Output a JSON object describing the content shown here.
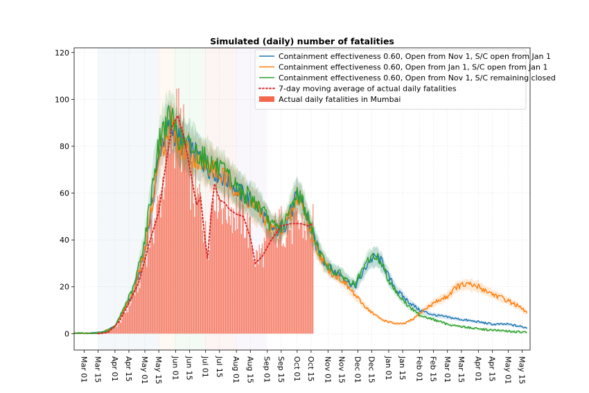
{
  "chart_data": {
    "type": "line",
    "title": "Simulated (daily) number of fatalities",
    "xlabel": "",
    "ylabel": "",
    "x_start_date": "2020-02-20",
    "x_end_date": "2021-05-23",
    "ylim": [
      -7,
      122
    ],
    "y_ticks": [
      0,
      20,
      40,
      60,
      80,
      100,
      120
    ],
    "x_ticks": [
      {
        "date": "2020-03-01",
        "label": "Mar 01"
      },
      {
        "date": "2020-03-15",
        "label": "Mar 15"
      },
      {
        "date": "2020-04-01",
        "label": "Apr 01"
      },
      {
        "date": "2020-04-15",
        "label": "Apr 15"
      },
      {
        "date": "2020-05-01",
        "label": "May 01"
      },
      {
        "date": "2020-05-15",
        "label": "May 15"
      },
      {
        "date": "2020-06-01",
        "label": "Jun 01"
      },
      {
        "date": "2020-06-15",
        "label": "Jun 15"
      },
      {
        "date": "2020-07-01",
        "label": "Jul 01"
      },
      {
        "date": "2020-07-15",
        "label": "Jul 15"
      },
      {
        "date": "2020-08-01",
        "label": "Aug 01"
      },
      {
        "date": "2020-08-15",
        "label": "Aug 15"
      },
      {
        "date": "2020-09-01",
        "label": "Sep 01"
      },
      {
        "date": "2020-09-15",
        "label": "Sep 15"
      },
      {
        "date": "2020-10-01",
        "label": "Oct 01"
      },
      {
        "date": "2020-10-15",
        "label": "Oct 15"
      },
      {
        "date": "2020-11-01",
        "label": "Nov 01"
      },
      {
        "date": "2020-11-15",
        "label": "Nov 15"
      },
      {
        "date": "2020-12-01",
        "label": "Dec 01"
      },
      {
        "date": "2020-12-15",
        "label": "Dec 15"
      },
      {
        "date": "2021-01-01",
        "label": "Jan 01"
      },
      {
        "date": "2021-01-15",
        "label": "Jan 15"
      },
      {
        "date": "2021-02-01",
        "label": "Feb 01"
      },
      {
        "date": "2021-02-15",
        "label": "Feb 15"
      },
      {
        "date": "2021-03-01",
        "label": "Mar 01"
      },
      {
        "date": "2021-03-15",
        "label": "Mar 15"
      },
      {
        "date": "2021-04-01",
        "label": "Apr 01"
      },
      {
        "date": "2021-04-15",
        "label": "Apr 15"
      },
      {
        "date": "2021-05-01",
        "label": "May 01"
      },
      {
        "date": "2021-05-15",
        "label": "May 15"
      }
    ],
    "grid": true,
    "legend_position": "top-right",
    "shaded_periods": [
      {
        "start": "2020-03-15",
        "end": "2020-05-15",
        "color": "#1f77b4"
      },
      {
        "start": "2020-05-15",
        "end": "2020-05-30",
        "color": "#ff7f0e"
      },
      {
        "start": "2020-05-30",
        "end": "2020-06-30",
        "color": "#2ca02c"
      },
      {
        "start": "2020-06-30",
        "end": "2020-07-31",
        "color": "#d62728"
      },
      {
        "start": "2020-07-31",
        "end": "2020-08-31",
        "color": "#9467bd"
      }
    ],
    "series": [
      {
        "name": "Containment effectiveness 0.60, Open from Nov 1, S/C open from Jan 1",
        "style": "line",
        "color": "#1f77b4",
        "points": [
          [
            "2020-02-20",
            0
          ],
          [
            "2020-03-10",
            0
          ],
          [
            "2020-03-20",
            0.5
          ],
          [
            "2020-04-01",
            3
          ],
          [
            "2020-04-10",
            10
          ],
          [
            "2020-04-20",
            18
          ],
          [
            "2020-05-01",
            35
          ],
          [
            "2020-05-10",
            60
          ],
          [
            "2020-05-17",
            80
          ],
          [
            "2020-05-22",
            86
          ],
          [
            "2020-05-28",
            88
          ],
          [
            "2020-06-05",
            82
          ],
          [
            "2020-06-15",
            78
          ],
          [
            "2020-06-25",
            75
          ],
          [
            "2020-07-05",
            71
          ],
          [
            "2020-07-15",
            68
          ],
          [
            "2020-07-25",
            65
          ],
          [
            "2020-08-05",
            60
          ],
          [
            "2020-08-15",
            57
          ],
          [
            "2020-08-25",
            53
          ],
          [
            "2020-09-05",
            45
          ],
          [
            "2020-09-12",
            44
          ],
          [
            "2020-09-20",
            47
          ],
          [
            "2020-09-26",
            53
          ],
          [
            "2020-10-01",
            59
          ],
          [
            "2020-10-06",
            56
          ],
          [
            "2020-10-12",
            48
          ],
          [
            "2020-10-20",
            38
          ],
          [
            "2020-10-28",
            31
          ],
          [
            "2020-11-05",
            27
          ],
          [
            "2020-11-15",
            25
          ],
          [
            "2020-11-22",
            22
          ],
          [
            "2020-11-28",
            20
          ],
          [
            "2020-12-05",
            25
          ],
          [
            "2020-12-12",
            31
          ],
          [
            "2020-12-20",
            33
          ],
          [
            "2020-12-26",
            30
          ],
          [
            "2021-01-01",
            24
          ],
          [
            "2021-01-10",
            18
          ],
          [
            "2021-01-20",
            14
          ],
          [
            "2021-02-01",
            10
          ],
          [
            "2021-02-15",
            8
          ],
          [
            "2021-03-01",
            7
          ],
          [
            "2021-03-15",
            6
          ],
          [
            "2021-04-01",
            5
          ],
          [
            "2021-04-15",
            4
          ],
          [
            "2021-05-01",
            4
          ],
          [
            "2021-05-20",
            2.5
          ]
        ]
      },
      {
        "name": "Containment effectiveness 0.60, Open from Jan 1, S/C open from Jan 1",
        "style": "line",
        "color": "#ff7f0e",
        "points": [
          [
            "2020-02-20",
            0
          ],
          [
            "2020-03-10",
            0
          ],
          [
            "2020-03-20",
            0.5
          ],
          [
            "2020-04-01",
            3
          ],
          [
            "2020-04-10",
            10
          ],
          [
            "2020-04-20",
            18
          ],
          [
            "2020-05-01",
            35
          ],
          [
            "2020-05-10",
            60
          ],
          [
            "2020-05-17",
            78
          ],
          [
            "2020-05-22",
            84
          ],
          [
            "2020-05-28",
            90
          ],
          [
            "2020-06-05",
            80
          ],
          [
            "2020-06-15",
            77
          ],
          [
            "2020-06-25",
            74
          ],
          [
            "2020-07-05",
            71
          ],
          [
            "2020-07-15",
            68
          ],
          [
            "2020-07-25",
            65
          ],
          [
            "2020-08-05",
            60
          ],
          [
            "2020-08-15",
            56
          ],
          [
            "2020-08-25",
            52
          ],
          [
            "2020-09-05",
            45
          ],
          [
            "2020-09-12",
            44
          ],
          [
            "2020-09-20",
            47
          ],
          [
            "2020-09-26",
            52
          ],
          [
            "2020-10-01",
            58
          ],
          [
            "2020-10-06",
            55
          ],
          [
            "2020-10-12",
            47
          ],
          [
            "2020-10-20",
            37
          ],
          [
            "2020-10-28",
            30
          ],
          [
            "2020-11-05",
            26
          ],
          [
            "2020-11-15",
            23
          ],
          [
            "2020-11-25",
            18
          ],
          [
            "2020-12-05",
            13
          ],
          [
            "2020-12-15",
            9
          ],
          [
            "2020-12-25",
            6
          ],
          [
            "2021-01-05",
            4.5
          ],
          [
            "2021-01-15",
            4
          ],
          [
            "2021-01-25",
            6
          ],
          [
            "2021-02-05",
            10
          ],
          [
            "2021-02-15",
            13
          ],
          [
            "2021-03-01",
            16
          ],
          [
            "2021-03-10",
            20
          ],
          [
            "2021-03-20",
            21
          ],
          [
            "2021-04-01",
            20
          ],
          [
            "2021-04-15",
            17
          ],
          [
            "2021-05-01",
            14
          ],
          [
            "2021-05-10",
            12
          ],
          [
            "2021-05-20",
            9
          ]
        ]
      },
      {
        "name": "Containment effectiveness 0.60, Open from Nov 1, S/C remaining closed",
        "style": "line",
        "color": "#2ca02c",
        "points": [
          [
            "2020-02-20",
            0
          ],
          [
            "2020-03-10",
            0
          ],
          [
            "2020-03-20",
            0.5
          ],
          [
            "2020-04-01",
            3
          ],
          [
            "2020-04-10",
            11
          ],
          [
            "2020-04-20",
            20
          ],
          [
            "2020-05-01",
            40
          ],
          [
            "2020-05-10",
            68
          ],
          [
            "2020-05-17",
            85
          ],
          [
            "2020-05-22",
            90
          ],
          [
            "2020-05-28",
            92
          ],
          [
            "2020-06-05",
            83
          ],
          [
            "2020-06-15",
            80
          ],
          [
            "2020-06-25",
            77
          ],
          [
            "2020-07-05",
            73
          ],
          [
            "2020-07-15",
            70
          ],
          [
            "2020-07-25",
            66
          ],
          [
            "2020-08-05",
            61
          ],
          [
            "2020-08-15",
            58
          ],
          [
            "2020-08-25",
            54
          ],
          [
            "2020-09-05",
            46
          ],
          [
            "2020-09-12",
            45
          ],
          [
            "2020-09-20",
            48
          ],
          [
            "2020-09-26",
            55
          ],
          [
            "2020-10-01",
            60
          ],
          [
            "2020-10-06",
            57
          ],
          [
            "2020-10-12",
            49
          ],
          [
            "2020-10-20",
            39
          ],
          [
            "2020-10-28",
            31
          ],
          [
            "2020-11-05",
            27
          ],
          [
            "2020-11-15",
            25
          ],
          [
            "2020-11-22",
            22
          ],
          [
            "2020-11-28",
            21
          ],
          [
            "2020-12-05",
            26
          ],
          [
            "2020-12-12",
            32
          ],
          [
            "2020-12-20",
            33
          ],
          [
            "2020-12-26",
            29
          ],
          [
            "2021-01-01",
            23
          ],
          [
            "2021-01-10",
            17
          ],
          [
            "2021-01-20",
            12
          ],
          [
            "2021-02-01",
            8
          ],
          [
            "2021-02-15",
            6
          ],
          [
            "2021-03-01",
            4
          ],
          [
            "2021-03-15",
            3
          ],
          [
            "2021-04-01",
            2
          ],
          [
            "2021-04-15",
            1.5
          ],
          [
            "2021-05-01",
            1
          ],
          [
            "2021-05-20",
            0.5
          ]
        ]
      },
      {
        "name": "7-day moving average of actual daily fatalities",
        "style": "dotted",
        "color": "#d62728",
        "points": [
          [
            "2020-03-15",
            0
          ],
          [
            "2020-03-25",
            0.5
          ],
          [
            "2020-04-05",
            5
          ],
          [
            "2020-04-15",
            13
          ],
          [
            "2020-04-25",
            22
          ],
          [
            "2020-05-05",
            38
          ],
          [
            "2020-05-15",
            52
          ],
          [
            "2020-05-22",
            72
          ],
          [
            "2020-05-28",
            88
          ],
          [
            "2020-06-03",
            93
          ],
          [
            "2020-06-08",
            86
          ],
          [
            "2020-06-12",
            78
          ],
          [
            "2020-06-18",
            64
          ],
          [
            "2020-06-22",
            55
          ],
          [
            "2020-06-26",
            58
          ],
          [
            "2020-06-30",
            42
          ],
          [
            "2020-07-03",
            32
          ],
          [
            "2020-07-07",
            53
          ],
          [
            "2020-07-10",
            64
          ],
          [
            "2020-07-15",
            57
          ],
          [
            "2020-07-20",
            56
          ],
          [
            "2020-07-25",
            53
          ],
          [
            "2020-08-01",
            51
          ],
          [
            "2020-08-08",
            50
          ],
          [
            "2020-08-15",
            41
          ],
          [
            "2020-08-20",
            30
          ],
          [
            "2020-08-27",
            33
          ],
          [
            "2020-09-05",
            40
          ],
          [
            "2020-09-15",
            46
          ],
          [
            "2020-09-25",
            47
          ],
          [
            "2020-10-05",
            47
          ],
          [
            "2020-10-12",
            46
          ],
          [
            "2020-10-17",
            47
          ]
        ]
      },
      {
        "name": "Actual daily fatalities in Mumbai",
        "style": "bar",
        "color": "#f4674f",
        "points": [
          [
            "2020-03-15",
            0
          ],
          [
            "2020-03-25",
            1
          ],
          [
            "2020-04-05",
            4
          ],
          [
            "2020-04-15",
            12
          ],
          [
            "2020-04-25",
            22
          ],
          [
            "2020-05-05",
            40
          ],
          [
            "2020-05-15",
            54
          ],
          [
            "2020-05-22",
            72
          ],
          [
            "2020-05-28",
            87
          ],
          [
            "2020-06-03",
            90
          ],
          [
            "2020-06-08",
            84
          ],
          [
            "2020-06-12",
            76
          ],
          [
            "2020-06-18",
            62
          ],
          [
            "2020-06-22",
            56
          ],
          [
            "2020-06-26",
            58
          ],
          [
            "2020-06-30",
            44
          ],
          [
            "2020-07-03",
            35
          ],
          [
            "2020-07-07",
            55
          ],
          [
            "2020-07-10",
            65
          ],
          [
            "2020-07-15",
            58
          ],
          [
            "2020-07-20",
            56
          ],
          [
            "2020-07-25",
            54
          ],
          [
            "2020-08-01",
            52
          ],
          [
            "2020-08-08",
            50
          ],
          [
            "2020-08-15",
            42
          ],
          [
            "2020-08-20",
            32
          ],
          [
            "2020-08-27",
            35
          ],
          [
            "2020-09-05",
            42
          ],
          [
            "2020-09-15",
            46
          ],
          [
            "2020-09-25",
            46
          ],
          [
            "2020-10-05",
            47
          ],
          [
            "2020-10-12",
            45
          ],
          [
            "2020-10-17",
            46
          ]
        ]
      }
    ]
  }
}
